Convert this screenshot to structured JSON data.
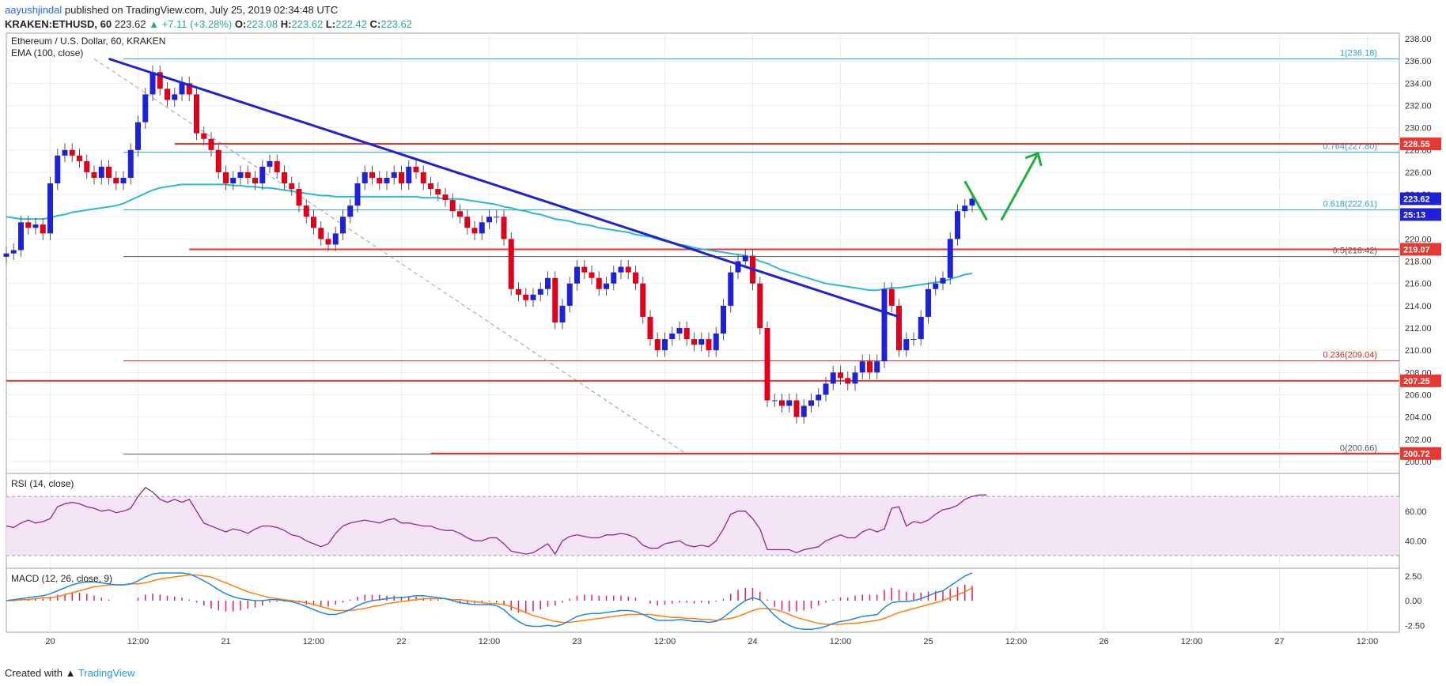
{
  "header": {
    "author": "aayushjindal",
    "published": " published on TradingView.com, July 25, 2019 02:34:48 UTC",
    "symbol": "KRAKEN:ETHUSD,",
    "tf": "60",
    "last": "223.62",
    "change": "▲ +7.11 (+3.28%)",
    "o_label": "O:",
    "o": "223.08",
    "h_label": "H:",
    "h": "223.62",
    "l_label": "L:",
    "l": "222.42",
    "c_label": "C:",
    "c": "223.62"
  },
  "footer": {
    "created": "Created with",
    "brand": "TradingView"
  },
  "chart_data": {
    "type": "line",
    "title": "Ethereum / U.S. Dollar, 60, KRAKEN",
    "indicator_label": "EMA (100, close)",
    "ylim": [
      199,
      238.5
    ],
    "y_ticks": [
      "200.00",
      "202.00",
      "204.00",
      "206.00",
      "208.00",
      "210.00",
      "212.00",
      "214.00",
      "216.00",
      "218.00",
      "220.00",
      "222.00",
      "224.00",
      "226.00",
      "228.00",
      "230.00",
      "232.00",
      "234.00",
      "236.00",
      "238.00"
    ],
    "x_ticks": [
      {
        "i": 6,
        "label": "20"
      },
      {
        "i": 18,
        "label": "12:00"
      },
      {
        "i": 30,
        "label": "21"
      },
      {
        "i": 42,
        "label": "12:00"
      },
      {
        "i": 54,
        "label": "22"
      },
      {
        "i": 66,
        "label": "12:00"
      },
      {
        "i": 78,
        "label": "23"
      },
      {
        "i": 90,
        "label": "12:00"
      },
      {
        "i": 102,
        "label": "24"
      },
      {
        "i": 114,
        "label": "12:00"
      },
      {
        "i": 126,
        "label": "25"
      },
      {
        "i": 138,
        "label": "12:00"
      },
      {
        "i": 150,
        "label": "26"
      },
      {
        "i": 162,
        "label": "12:00"
      },
      {
        "i": 174,
        "label": "27"
      },
      {
        "i": 186,
        "label": "12:00"
      }
    ],
    "closes": [
      218.7,
      219.0,
      221.5,
      221.0,
      221.3,
      220.5,
      225.0,
      227.5,
      228.0,
      227.5,
      227.0,
      226.0,
      225.5,
      226.5,
      225.5,
      225.0,
      225.5,
      228.0,
      230.5,
      233.0,
      235.0,
      233.5,
      232.5,
      233.0,
      234.0,
      233.0,
      229.5,
      229.0,
      228.0,
      226.0,
      225.0,
      225.5,
      226.0,
      225.5,
      225.0,
      226.5,
      227.0,
      226.0,
      225.0,
      224.5,
      223.0,
      222.0,
      221.0,
      220.0,
      219.5,
      220.5,
      222.0,
      223.0,
      225.0,
      226.0,
      225.5,
      225.0,
      225.5,
      226.0,
      225.0,
      226.5,
      226.0,
      225.0,
      224.5,
      224.0,
      223.5,
      222.5,
      222.0,
      221.0,
      220.5,
      221.5,
      222.0,
      222.0,
      220.0,
      215.5,
      215.0,
      214.5,
      215.0,
      215.5,
      216.5,
      212.5,
      214.0,
      216.0,
      217.5,
      217.0,
      216.5,
      215.5,
      216.0,
      217.0,
      217.5,
      217.0,
      216.0,
      213.0,
      211.0,
      210.0,
      211.0,
      211.5,
      212.0,
      211.0,
      210.5,
      211.0,
      210.0,
      211.5,
      214.0,
      217.0,
      218.0,
      218.5,
      216.0,
      212.0,
      205.5,
      205.5,
      205.0,
      205.5,
      204.0,
      205.0,
      205.5,
      206.0,
      207.0,
      208.0,
      207.5,
      207.0,
      208.0,
      209.0,
      208.0,
      209.0,
      215.5,
      214.0,
      210.0,
      211.0,
      211.0,
      213.0,
      215.5,
      216.0,
      216.5,
      220.0,
      222.5,
      223.0,
      223.62
    ],
    "ema": [
      222.0,
      221.9,
      221.8,
      221.8,
      221.8,
      221.8,
      221.9,
      222.1,
      222.2,
      222.4,
      222.5,
      222.6,
      222.7,
      222.8,
      222.9,
      223.0,
      223.2,
      223.5,
      223.8,
      224.1,
      224.4,
      224.6,
      224.7,
      224.8,
      224.9,
      224.9,
      224.9,
      224.9,
      224.9,
      224.9,
      224.9,
      224.8,
      224.8,
      224.7,
      224.7,
      224.6,
      224.6,
      224.5,
      224.4,
      224.3,
      224.2,
      224.1,
      224.0,
      223.9,
      223.9,
      223.8,
      223.8,
      223.8,
      223.8,
      223.8,
      223.8,
      223.8,
      223.8,
      223.8,
      223.8,
      223.8,
      223.8,
      223.7,
      223.7,
      223.7,
      223.6,
      223.6,
      223.6,
      223.5,
      223.4,
      223.3,
      223.2,
      223.1,
      222.9,
      222.8,
      222.6,
      222.5,
      222.3,
      222.2,
      222.0,
      221.8,
      221.7,
      221.6,
      221.4,
      221.3,
      221.2,
      221.0,
      220.9,
      220.8,
      220.7,
      220.6,
      220.4,
      220.3,
      220.2,
      220.0,
      219.8,
      219.7,
      219.5,
      219.4,
      219.2,
      219.1,
      219.0,
      218.9,
      218.8,
      218.7,
      218.6,
      218.5,
      218.3,
      218.0,
      217.8,
      217.5,
      217.2,
      217.0,
      216.8,
      216.6,
      216.4,
      216.2,
      216.0,
      215.9,
      215.8,
      215.7,
      215.6,
      215.5,
      215.4,
      215.4,
      215.5,
      215.6,
      215.6,
      215.7,
      215.8,
      215.9,
      216.0,
      216.1,
      216.2,
      216.4,
      216.6,
      216.8,
      216.9
    ],
    "fib_levels": [
      {
        "label": "1(236.18)",
        "value": 236.18
      },
      {
        "label": "0.764(227.80)",
        "value": 227.8
      },
      {
        "label": "0.618(222.61)",
        "value": 222.61
      },
      {
        "label": "0.5(218.42)",
        "value": 218.42
      },
      {
        "label": "0.236(209.04)",
        "value": 209.04
      },
      {
        "label": "0(200.66)",
        "value": 200.66
      }
    ],
    "horizontal_levels": [
      {
        "label": "228.55",
        "value": 228.55,
        "from": 23
      },
      {
        "label": "219.07",
        "value": 219.07,
        "from": 25
      },
      {
        "label": "207.25",
        "value": 207.25,
        "from": 0
      },
      {
        "label": "200.72",
        "value": 200.72,
        "from": 58
      }
    ],
    "trendline": {
      "x1": 14,
      "y1": 236.2,
      "x2": 122,
      "y2": 213.0
    },
    "dashed_diagonal": {
      "x1": 12,
      "y1": 236.2,
      "x2": 66,
      "y2": 200.66
    },
    "price_tags": [
      {
        "label": "223.62",
        "value": 223.62,
        "color": "#1e22d4"
      },
      {
        "label": "25:13",
        "value": 222.2,
        "color": "#1e22d4"
      }
    ],
    "rsi": {
      "label": "RSI (14, close)",
      "ylim": [
        22,
        85
      ],
      "y_ticks": [
        "40.00",
        "60.00"
      ],
      "band": [
        30,
        70
      ],
      "values": [
        50,
        49,
        52,
        54,
        52,
        53,
        55,
        63,
        65,
        66,
        65,
        63,
        62,
        60,
        61,
        59,
        60,
        62,
        70,
        76,
        73,
        68,
        66,
        68,
        66,
        68,
        60,
        52,
        50,
        48,
        46,
        48,
        47,
        45,
        48,
        50,
        50,
        49,
        47,
        44,
        43,
        40,
        38,
        36,
        38,
        45,
        50,
        52,
        53,
        54,
        53,
        52,
        54,
        55,
        52,
        52,
        51,
        50,
        50,
        48,
        47,
        47,
        45,
        42,
        40,
        40,
        42,
        42,
        38,
        33,
        32,
        31,
        32,
        35,
        38,
        31,
        40,
        43,
        44,
        43,
        42,
        42,
        44,
        44,
        45,
        44,
        42,
        37,
        35,
        35,
        38,
        39,
        40,
        37,
        36,
        37,
        36,
        40,
        48,
        58,
        60,
        60,
        55,
        48,
        34,
        34,
        34,
        34,
        32,
        34,
        35,
        36,
        40,
        42,
        44,
        42,
        42,
        46,
        48,
        46,
        48,
        62,
        63,
        50,
        53,
        52,
        54,
        58,
        61,
        62,
        64,
        68,
        70,
        71,
        71
      ]
    },
    "macd": {
      "label": "MACD (12, 26, close, 9)",
      "ylim": [
        -3.2,
        3.2
      ],
      "y_ticks": [
        "2.50",
        "0.00",
        "-2.50"
      ],
      "macd_line": [
        0.0,
        0.1,
        0.2,
        0.3,
        0.4,
        0.5,
        0.7,
        1.0,
        1.3,
        1.6,
        1.8,
        1.9,
        1.9,
        1.8,
        1.7,
        1.6,
        1.6,
        1.7,
        2.0,
        2.4,
        2.7,
        2.8,
        2.8,
        2.8,
        2.8,
        2.7,
        2.4,
        2.0,
        1.6,
        1.1,
        0.7,
        0.4,
        0.2,
        0.1,
        0.0,
        0.0,
        0.1,
        0.1,
        0.0,
        -0.1,
        -0.3,
        -0.6,
        -0.9,
        -1.2,
        -1.4,
        -1.4,
        -1.2,
        -0.9,
        -0.5,
        -0.2,
        0.0,
        0.1,
        0.2,
        0.3,
        0.3,
        0.4,
        0.5,
        0.5,
        0.4,
        0.3,
        0.2,
        0.0,
        -0.2,
        -0.3,
        -0.4,
        -0.4,
        -0.4,
        -0.5,
        -0.9,
        -1.6,
        -2.1,
        -2.5,
        -2.6,
        -2.6,
        -2.5,
        -2.6,
        -2.4,
        -2.0,
        -1.6,
        -1.4,
        -1.3,
        -1.3,
        -1.2,
        -1.1,
        -1.0,
        -1.0,
        -1.1,
        -1.4,
        -1.7,
        -2.0,
        -2.0,
        -2.0,
        -1.9,
        -2.0,
        -2.1,
        -2.1,
        -2.2,
        -2.1,
        -1.7,
        -1.1,
        -0.5,
        0.0,
        0.3,
        0.1,
        -0.7,
        -1.5,
        -2.1,
        -2.5,
        -2.8,
        -2.9,
        -2.9,
        -2.8,
        -2.6,
        -2.3,
        -2.1,
        -2.0,
        -1.8,
        -1.6,
        -1.5,
        -1.4,
        -0.7,
        -0.2,
        -0.1,
        -0.1,
        0.0,
        0.2,
        0.5,
        0.8,
        1.0,
        1.5,
        2.0,
        2.5,
        2.8
      ],
      "signal_line": [
        0.0,
        0.0,
        0.1,
        0.1,
        0.2,
        0.3,
        0.3,
        0.4,
        0.6,
        0.8,
        1.0,
        1.2,
        1.4,
        1.5,
        1.6,
        1.6,
        1.6,
        1.7,
        1.7,
        1.8,
        2.0,
        2.2,
        2.3,
        2.4,
        2.5,
        2.6,
        2.6,
        2.5,
        2.4,
        2.1,
        1.8,
        1.5,
        1.2,
        0.9,
        0.7,
        0.5,
        0.3,
        0.2,
        0.1,
        0.0,
        -0.1,
        -0.2,
        -0.4,
        -0.6,
        -0.8,
        -1.0,
        -1.0,
        -1.0,
        -0.9,
        -0.8,
        -0.6,
        -0.5,
        -0.3,
        -0.2,
        -0.1,
        0.0,
        0.1,
        0.2,
        0.2,
        0.2,
        0.2,
        0.1,
        0.1,
        0.0,
        -0.1,
        -0.2,
        -0.3,
        -0.3,
        -0.4,
        -0.6,
        -0.9,
        -1.2,
        -1.5,
        -1.7,
        -1.9,
        -2.1,
        -2.2,
        -2.2,
        -2.1,
        -2.0,
        -1.9,
        -1.8,
        -1.7,
        -1.6,
        -1.5,
        -1.4,
        -1.4,
        -1.4,
        -1.4,
        -1.5,
        -1.6,
        -1.7,
        -1.7,
        -1.8,
        -1.8,
        -1.9,
        -1.9,
        -2.0,
        -1.9,
        -1.8,
        -1.6,
        -1.3,
        -1.0,
        -0.8,
        -0.8,
        -0.9,
        -1.1,
        -1.4,
        -1.7,
        -1.9,
        -2.1,
        -2.3,
        -2.4,
        -2.4,
        -2.4,
        -2.3,
        -2.3,
        -2.2,
        -2.1,
        -2.0,
        -1.8,
        -1.5,
        -1.2,
        -1.0,
        -0.8,
        -0.6,
        -0.4,
        -0.2,
        0.0,
        0.3,
        0.6,
        0.9,
        1.3
      ]
    }
  }
}
